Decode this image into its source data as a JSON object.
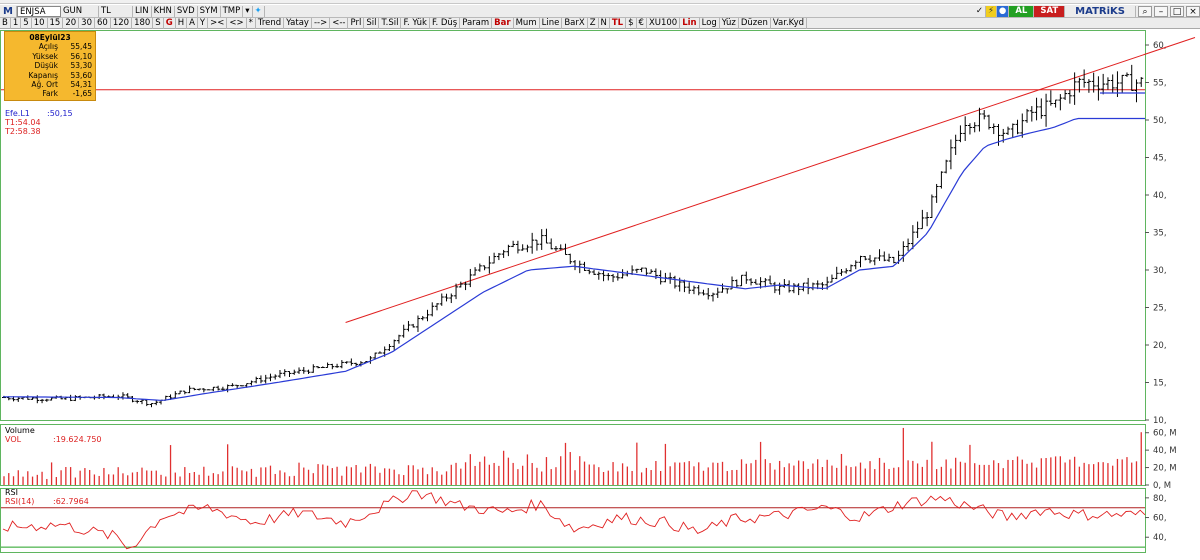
{
  "toolbar1": {
    "logo": "M",
    "symbol": "ENJSA",
    "period": "GUN",
    "currency": "TL",
    "items": [
      "LIN",
      "KHN",
      "SVD",
      "SYM",
      "TMP"
    ],
    "right": {
      "status_ok": "✓",
      "lightning": "⚡",
      "buy": "AL",
      "sell": "SAT",
      "brand": "MATRiKS",
      "search": "⌕",
      "minimize": "–",
      "maximize": "□",
      "close": "×"
    }
  },
  "toolbar2": {
    "items": [
      "B",
      "1",
      "5",
      "10",
      "15",
      "20",
      "30",
      "60",
      "120",
      "180",
      "S",
      "G",
      "H",
      "A",
      "Y",
      "><",
      "<>",
      "*",
      "Trend",
      "Yatay",
      "-->",
      "<--",
      "Prl",
      "Sil",
      "T.Sil",
      "F. Yük",
      "F. Düş",
      "Param",
      "Bar",
      "Mum",
      "Line",
      "BarX",
      "Z",
      "N",
      "TL",
      "$",
      "€",
      "XU100",
      "Lin",
      "Log",
      "Yüz",
      "Düzen",
      "Var.Kyd"
    ],
    "red_items": [
      "G",
      "Bar",
      "TL",
      "Lin"
    ]
  },
  "info_box": {
    "date": "08Eylül23",
    "rows": [
      {
        "label": "Açılış",
        "value": "55,45"
      },
      {
        "label": "Yüksek",
        "value": "56,10"
      },
      {
        "label": "Düşük",
        "value": "53,30"
      },
      {
        "label": "Kapanış",
        "value": "53,60"
      },
      {
        "label": "Ağ. Ort",
        "value": "54,31"
      },
      {
        "label": "Fark",
        "value": "-1,65"
      }
    ]
  },
  "price_legend": [
    {
      "label": "Efe.L1",
      "value": ":50,15",
      "color": "#2222cc"
    },
    {
      "label": "T1:54.04",
      "value": "",
      "color": "#dd2222"
    },
    {
      "label": "T2:58.38",
      "value": "",
      "color": "#dd2222"
    }
  ],
  "volume_legend": {
    "title": "Volume",
    "label": "VOL",
    "value": ":19.624.750"
  },
  "rsi_legend": {
    "title": "RSI",
    "label": "RSI(14)",
    "value": ":62.7964"
  },
  "colors": {
    "bars": "#000000",
    "ema": "#2a3bd6",
    "trendline": "#e02020",
    "volume": "#e03030",
    "rsi": "#e02020",
    "rsi_band": "#b02020",
    "rsi_band_low": "#22a022",
    "pane_border": "#5fb55f"
  },
  "chart_data": {
    "type": "line",
    "price_axis_ticks": [
      "60,",
      "55,",
      "50,",
      "45,",
      "40,",
      "35,",
      "30,",
      "25,",
      "20,",
      "15,",
      "10,"
    ],
    "price_ylim": [
      10,
      62
    ],
    "horizontal_line": 54.04,
    "trendline": [
      {
        "x": 0.3,
        "y": 23
      },
      {
        "x": 1.0,
        "y": 61
      }
    ],
    "close_anchors": [
      [
        0,
        13
      ],
      [
        0.05,
        12.8
      ],
      [
        0.1,
        13.2
      ],
      [
        0.13,
        12.2
      ],
      [
        0.16,
        14
      ],
      [
        0.2,
        14.5
      ],
      [
        0.24,
        16
      ],
      [
        0.28,
        17
      ],
      [
        0.32,
        18
      ],
      [
        0.36,
        23
      ],
      [
        0.4,
        28
      ],
      [
        0.44,
        33
      ],
      [
        0.47,
        34
      ],
      [
        0.5,
        31
      ],
      [
        0.53,
        29
      ],
      [
        0.56,
        30
      ],
      [
        0.59,
        28
      ],
      [
        0.62,
        27
      ],
      [
        0.65,
        29
      ],
      [
        0.68,
        27.5
      ],
      [
        0.72,
        28
      ],
      [
        0.75,
        32
      ],
      [
        0.78,
        31
      ],
      [
        0.81,
        38
      ],
      [
        0.84,
        50
      ],
      [
        0.86,
        50
      ],
      [
        0.88,
        48
      ],
      [
        0.9,
        51
      ],
      [
        0.92,
        52
      ],
      [
        0.94,
        55
      ]
    ],
    "ema_anchors": [
      [
        0,
        13.1
      ],
      [
        0.1,
        13
      ],
      [
        0.14,
        12.6
      ],
      [
        0.18,
        13.6
      ],
      [
        0.24,
        15
      ],
      [
        0.3,
        16.5
      ],
      [
        0.34,
        19
      ],
      [
        0.38,
        23
      ],
      [
        0.42,
        27
      ],
      [
        0.46,
        30
      ],
      [
        0.5,
        30.5
      ],
      [
        0.55,
        29.5
      ],
      [
        0.6,
        28.5
      ],
      [
        0.65,
        27.5
      ],
      [
        0.68,
        28
      ],
      [
        0.72,
        27.5
      ],
      [
        0.75,
        30
      ],
      [
        0.78,
        30.5
      ],
      [
        0.81,
        35
      ],
      [
        0.84,
        43
      ],
      [
        0.86,
        46.5
      ],
      [
        0.88,
        47.5
      ],
      [
        0.9,
        48.3
      ],
      [
        0.92,
        49
      ],
      [
        0.94,
        50.2
      ]
    ],
    "volume_axis_ticks": [
      "60, M",
      "40, M",
      "20, M",
      "0, M"
    ],
    "volume_ylim": [
      0,
      70
    ],
    "rsi_axis_ticks": [
      "80,",
      "60,",
      "40,"
    ],
    "rsi_ylim": [
      25,
      90
    ],
    "rsi_band_high": 70,
    "rsi_band_low": 30,
    "rsi_anchors": [
      [
        0,
        50
      ],
      [
        0.05,
        53
      ],
      [
        0.1,
        40
      ],
      [
        0.11,
        28
      ],
      [
        0.14,
        62
      ],
      [
        0.18,
        70
      ],
      [
        0.22,
        55
      ],
      [
        0.26,
        65
      ],
      [
        0.3,
        55
      ],
      [
        0.34,
        75
      ],
      [
        0.36,
        87
      ],
      [
        0.4,
        72
      ],
      [
        0.44,
        65
      ],
      [
        0.47,
        74
      ],
      [
        0.5,
        48
      ],
      [
        0.54,
        60
      ],
      [
        0.58,
        55
      ],
      [
        0.61,
        45
      ],
      [
        0.64,
        58
      ],
      [
        0.68,
        62
      ],
      [
        0.72,
        70
      ],
      [
        0.75,
        60
      ],
      [
        0.79,
        75
      ],
      [
        0.82,
        80
      ],
      [
        0.85,
        70
      ],
      [
        0.88,
        60
      ],
      [
        0.91,
        68
      ],
      [
        0.94,
        63
      ]
    ]
  }
}
